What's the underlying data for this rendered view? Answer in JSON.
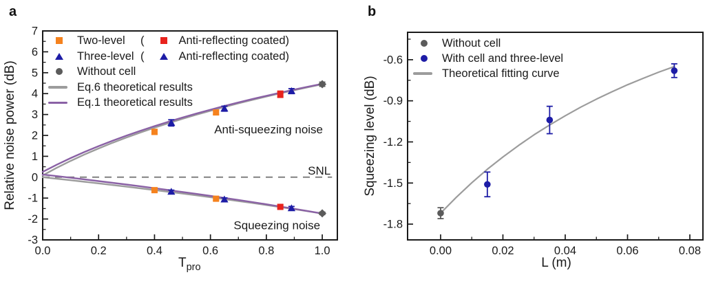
{
  "figure": {
    "panel_a_letter": "a",
    "panel_b_letter": "b"
  },
  "colors": {
    "orange": "#F5821E",
    "red": "#E8231D",
    "navy": "#1D1CA6",
    "gray_dark": "#5B5B5B",
    "gray_line": "#9C9C9C",
    "purple": "#8A61A5",
    "snl_gray": "#808080",
    "axis_black": "#1A1A1A"
  },
  "panel_a": {
    "ylabel": "Relative noise power (dB)",
    "xlabel_main": "T",
    "xlabel_sub": "pro",
    "legend_rows": [
      {
        "marker": "square",
        "color": "orange",
        "label": "Two-level",
        "paren_open": "(",
        "marker2": "square",
        "color2": "red",
        "label2": "Anti-reflecting coated",
        "paren_close": ")"
      },
      {
        "marker": "triangle",
        "color": "navy",
        "label": "Three-level",
        "paren_open": "(",
        "marker2": "triangle",
        "color2": "navy",
        "label2": "Anti-reflecting coated",
        "paren_close": ")"
      },
      {
        "marker": "circle",
        "color": "gray_dark",
        "label": "Without cell"
      },
      {
        "marker": "line",
        "color": "gray_line",
        "label": "Eq.6 theoretical results"
      },
      {
        "marker": "line",
        "color": "purple",
        "label": "Eq.1 theoretical results"
      }
    ]
  },
  "panel_b": {
    "ylabel": "Squeezing level (dB)",
    "xlabel": "L (m)",
    "legend_rows": [
      {
        "marker": "circle",
        "color": "gray_dark",
        "label": "Without cell"
      },
      {
        "marker": "circle",
        "color": "navy",
        "label": "With cell and three-level"
      },
      {
        "marker": "line",
        "color": "gray_line",
        "label": "Theoretical fitting curve"
      }
    ]
  },
  "chart_data": [
    {
      "id": "a",
      "type": "scatter",
      "title": "",
      "xlabel": "T_pro",
      "ylabel": "Relative noise power (dB)",
      "xlim": [
        0,
        1.054
      ],
      "ylim": [
        -3,
        7
      ],
      "grid": false,
      "legend_position": "top-left",
      "x_ticks_major": [
        0.0,
        0.2,
        0.4,
        0.6,
        0.8,
        1.0
      ],
      "x_tick_labels": [
        "0.0",
        "0.2",
        "0.4",
        "0.6",
        "0.8",
        "1.0"
      ],
      "x_ticks_minor": [
        0.1,
        0.3,
        0.5,
        0.7,
        0.9
      ],
      "y_ticks_major": [
        -3,
        -2,
        -1,
        0,
        1,
        2,
        3,
        4,
        5,
        6,
        7
      ],
      "y_tick_labels": [
        "-3",
        "-2",
        "-1",
        "0",
        "1",
        "2",
        "3",
        "4",
        "5",
        "6",
        "7"
      ],
      "y_ticks_minor": [
        -2.5,
        -1.5,
        -0.5,
        0.5,
        1.5,
        2.5,
        3.5,
        4.5,
        5.5,
        6.5
      ],
      "snl_line": {
        "y": 0,
        "dash": "10 8",
        "color": "snl_gray",
        "x_start": 0,
        "x_end": 1.035
      },
      "curves": [
        {
          "name": "Eq.6 theoretical results (anti-squeezing)",
          "color": "gray_line",
          "width": 2.4,
          "points": [
            [
              0,
              0.086
            ],
            [
              0.05,
              0.446
            ],
            [
              0.1,
              0.779
            ],
            [
              0.15,
              1.089
            ],
            [
              0.2,
              1.376
            ],
            [
              0.25,
              1.647
            ],
            [
              0.3,
              1.902
            ],
            [
              0.35,
              2.143
            ],
            [
              0.4,
              2.37
            ],
            [
              0.45,
              2.587
            ],
            [
              0.5,
              2.793
            ],
            [
              0.55,
              2.99
            ],
            [
              0.6,
              3.178
            ],
            [
              0.65,
              3.358
            ],
            [
              0.7,
              3.532
            ],
            [
              0.75,
              3.7
            ],
            [
              0.8,
              3.86
            ],
            [
              0.85,
              4.015
            ],
            [
              0.9,
              4.165
            ],
            [
              0.95,
              4.309
            ],
            [
              1.0,
              4.448
            ]
          ]
        },
        {
          "name": "Eq.6 theoretical results (squeezing)",
          "color": "gray_line",
          "width": 2.4,
          "points": [
            [
              0,
              0
            ],
            [
              0.05,
              -0.072
            ],
            [
              0.1,
              -0.146
            ],
            [
              0.15,
              -0.22
            ],
            [
              0.2,
              -0.297
            ],
            [
              0.25,
              -0.374
            ],
            [
              0.3,
              -0.453
            ],
            [
              0.35,
              -0.533
            ],
            [
              0.4,
              -0.615
            ],
            [
              0.45,
              -0.698
            ],
            [
              0.5,
              -0.783
            ],
            [
              0.55,
              -0.87
            ],
            [
              0.6,
              -0.958
            ],
            [
              0.65,
              -1.049
            ],
            [
              0.7,
              -1.141
            ],
            [
              0.75,
              -1.235
            ],
            [
              0.8,
              -1.331
            ],
            [
              0.85,
              -1.43
            ],
            [
              0.9,
              -1.531
            ],
            [
              0.95,
              -1.634
            ],
            [
              1.0,
              -1.739
            ]
          ]
        },
        {
          "name": "Eq.1 theoretical results (anti-squeezing)",
          "color": "purple",
          "width": 2.4,
          "points": [
            [
              0,
              0.253
            ],
            [
              0.05,
              0.596
            ],
            [
              0.1,
              0.913
            ],
            [
              0.15,
              1.209
            ],
            [
              0.2,
              1.486
            ],
            [
              0.25,
              1.747
            ],
            [
              0.3,
              1.992
            ],
            [
              0.35,
              2.225
            ],
            [
              0.4,
              2.445
            ],
            [
              0.45,
              2.655
            ],
            [
              0.5,
              2.856
            ],
            [
              0.55,
              3.047
            ],
            [
              0.6,
              3.231
            ],
            [
              0.65,
              3.407
            ],
            [
              0.7,
              3.576
            ],
            [
              0.75,
              3.739
            ],
            [
              0.8,
              3.896
            ],
            [
              0.85,
              4.047
            ],
            [
              0.9,
              4.193
            ],
            [
              0.95,
              4.335
            ],
            [
              1.0,
              4.472
            ]
          ]
        },
        {
          "name": "Eq.1 theoretical results (squeezing)",
          "color": "purple",
          "width": 2.4,
          "points": [
            [
              0,
              0.128
            ],
            [
              0.05,
              0.052
            ],
            [
              0.1,
              -0.026
            ],
            [
              0.15,
              -0.106
            ],
            [
              0.2,
              -0.186
            ],
            [
              0.25,
              -0.269
            ],
            [
              0.3,
              -0.353
            ],
            [
              0.35,
              -0.438
            ],
            [
              0.4,
              -0.526
            ],
            [
              0.45,
              -0.615
            ],
            [
              0.5,
              -0.706
            ],
            [
              0.55,
              -0.799
            ],
            [
              0.6,
              -0.894
            ],
            [
              0.65,
              -0.991
            ],
            [
              0.7,
              -1.09
            ],
            [
              0.75,
              -1.192
            ],
            [
              0.8,
              -1.296
            ],
            [
              0.85,
              -1.403
            ],
            [
              0.9,
              -1.512
            ],
            [
              0.95,
              -1.624
            ],
            [
              1.0,
              -1.739
            ]
          ]
        }
      ],
      "series": [
        {
          "name": "Two-level",
          "marker": "square",
          "color": "orange",
          "points": [
            {
              "x": 0.4,
              "y": 2.17,
              "err": 0.12
            },
            {
              "x": 0.62,
              "y": 3.1,
              "err": 0.1
            },
            {
              "x": 0.4,
              "y": -0.62,
              "err": 0.08
            },
            {
              "x": 0.62,
              "y": -1.03,
              "err": 0.08
            }
          ]
        },
        {
          "name": "Three-level",
          "marker": "triangle",
          "color": "navy",
          "points": [
            {
              "x": 0.46,
              "y": 2.6,
              "err": 0.15
            },
            {
              "x": 0.65,
              "y": 3.28,
              "err": 0.12
            },
            {
              "x": 0.46,
              "y": -0.7,
              "err": 0.08
            },
            {
              "x": 0.65,
              "y": -1.07,
              "err": 0.08
            }
          ]
        },
        {
          "name": "Two-level anti-reflecting coated",
          "marker": "square",
          "color": "red",
          "points": [
            {
              "x": 0.85,
              "y": 3.97,
              "err": 0.15
            },
            {
              "x": 0.85,
              "y": -1.42,
              "err": 0.08
            }
          ]
        },
        {
          "name": "Three-level anti-reflecting coated",
          "marker": "triangle",
          "color": "navy",
          "points": [
            {
              "x": 0.89,
              "y": 4.12,
              "err": 0.12
            },
            {
              "x": 0.89,
              "y": -1.49,
              "err": 0.09
            }
          ]
        },
        {
          "name": "Without cell",
          "marker": "diamond",
          "color": "gray_dark",
          "points": [
            {
              "x": 1.0,
              "y": 4.45,
              "err": 0.1
            },
            {
              "x": 1.0,
              "y": -1.73,
              "err": 0.06
            }
          ]
        }
      ],
      "annotations": [
        {
          "text": "Anti-squeezing noise",
          "x": 0.808,
          "y": 2.3,
          "anchor": "middle"
        },
        {
          "text": "SNL",
          "x": 1.03,
          "y": 0.33,
          "anchor": "end"
        },
        {
          "text": "Squeezing noise",
          "x": 0.838,
          "y": -2.3,
          "anchor": "middle"
        }
      ]
    },
    {
      "id": "b",
      "type": "scatter",
      "title": "",
      "xlabel": "L (m)",
      "ylabel": "Squeezing level (dB)",
      "xlim": [
        -0.0106,
        0.0842
      ],
      "ylim": [
        -1.915,
        -0.4
      ],
      "grid": false,
      "legend_position": "top-left",
      "x_ticks_major": [
        0.0,
        0.02,
        0.04,
        0.06,
        0.08
      ],
      "x_tick_labels": [
        "0.00",
        "0.02",
        "0.04",
        "0.06",
        "0.08"
      ],
      "x_ticks_minor": [
        0.01,
        0.03,
        0.05,
        0.07
      ],
      "y_ticks_major": [
        -0.6,
        -0.9,
        -1.2,
        -1.5,
        -1.8
      ],
      "y_tick_labels": [
        "-0.6",
        "-0.9",
        "-1.2",
        "-1.5",
        "-1.8"
      ],
      "y_ticks_minor": [
        -0.45,
        -0.75,
        -1.05,
        -1.35,
        -1.65
      ],
      "curves": [
        {
          "name": "Theoretical fitting curve",
          "color": "gray_line",
          "width": 2.2,
          "points": [
            [
              0,
              -1.72
            ],
            [
              0.005,
              -1.605
            ],
            [
              0.01,
              -1.498
            ],
            [
              0.015,
              -1.4
            ],
            [
              0.02,
              -1.31
            ],
            [
              0.025,
              -1.226
            ],
            [
              0.03,
              -1.148
            ],
            [
              0.035,
              -1.076
            ],
            [
              0.04,
              -1.009
            ],
            [
              0.045,
              -0.946
            ],
            [
              0.05,
              -0.888
            ],
            [
              0.055,
              -0.834
            ],
            [
              0.06,
              -0.783
            ],
            [
              0.065,
              -0.736
            ],
            [
              0.07,
              -0.691
            ],
            [
              0.075,
              -0.65
            ]
          ]
        }
      ],
      "series": [
        {
          "name": "Without cell",
          "marker": "circle",
          "color": "gray_dark",
          "points": [
            {
              "x": 0.0,
              "y": -1.72,
              "err": 0.04
            }
          ]
        },
        {
          "name": "With cell and three-level",
          "marker": "circle",
          "color": "navy",
          "points": [
            {
              "x": 0.015,
              "y": -1.51,
              "err": 0.09
            },
            {
              "x": 0.035,
              "y": -1.04,
              "err": 0.1
            },
            {
              "x": 0.075,
              "y": -0.68,
              "err": 0.05
            }
          ]
        }
      ],
      "annotations": []
    }
  ]
}
